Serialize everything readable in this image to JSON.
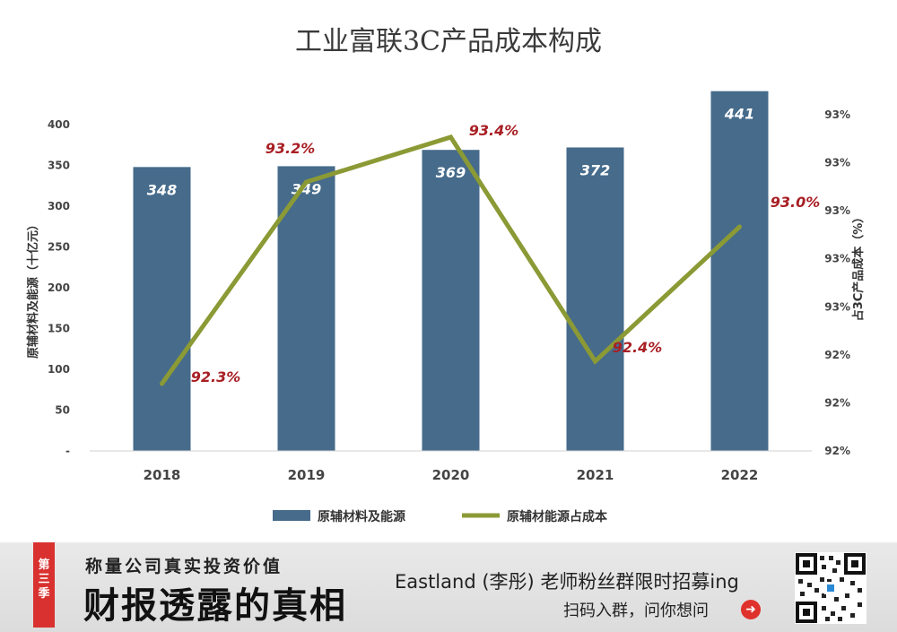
{
  "chart_data": {
    "type": "bar+line",
    "title": "工业富联3C产品成本构成",
    "categories": [
      "2018",
      "2019",
      "2020",
      "2021",
      "2022"
    ],
    "series": [
      {
        "name": "原辅材料及能源",
        "type": "bar",
        "axis": "left",
        "color": "#466b8b",
        "values": [
          348,
          349,
          369,
          372,
          441
        ],
        "labels": [
          "348",
          "349",
          "369",
          "372",
          "441"
        ]
      },
      {
        "name": "原辅材能源占成本",
        "type": "line",
        "axis": "right",
        "color": "#8b9a35",
        "values": [
          92.3,
          93.2,
          93.4,
          92.4,
          93.0
        ],
        "labels": [
          "92.3%",
          "93.2%",
          "93.4%",
          "92.4%",
          "93.0%"
        ]
      }
    ],
    "y_left": {
      "label": "原辅材料及能源（十亿元）",
      "ylim": [
        0,
        450
      ],
      "ticks": [
        "-",
        "50",
        "100",
        "150",
        "200",
        "250",
        "300",
        "350",
        "400"
      ]
    },
    "y_right": {
      "label": "占3C产品成本（%）",
      "ylim": [
        92.0,
        93.5
      ],
      "ticks": [
        "92%",
        "92%",
        "92%",
        "93%",
        "93%",
        "93%",
        "93%",
        "93%"
      ]
    },
    "grid": false,
    "legend_position": "bottom-center"
  },
  "footer": {
    "season_tag": [
      "第",
      "三",
      "季"
    ],
    "slogan_small": "称量公司真实投资价值",
    "slogan_big": "财报透露的真相",
    "recruit_text": "Eastland (李彤) 老师粉丝群限时招募ing",
    "scan_text": "扫码入群，问你想问",
    "arrow_icon": "arrow-right-circle-icon",
    "qr_icon": "qr-code-icon"
  }
}
